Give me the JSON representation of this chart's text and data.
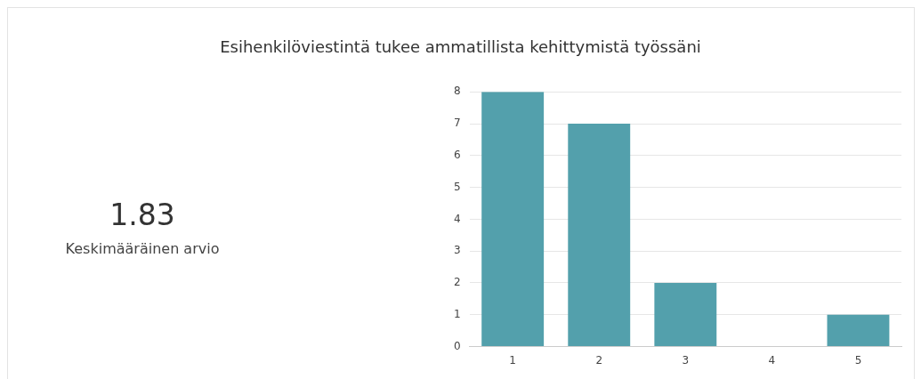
{
  "chart_data": [
    {
      "type": "other",
      "annotations": [
        "1.83",
        "Keskimääräinen arvio"
      ]
    },
    {
      "type": "bar",
      "title": "Esihenkilöviestintä tukee ammatillista kehittymistä työssäni",
      "categories": [
        "1",
        "2",
        "3",
        "4",
        "5"
      ],
      "values": [
        8,
        7,
        2,
        0,
        1
      ],
      "color": "#53a0ac",
      "ylim": [
        0,
        8
      ],
      "yticks": [
        0,
        1,
        2,
        3,
        4,
        5,
        6,
        7,
        8
      ],
      "grid": "y"
    }
  ]
}
